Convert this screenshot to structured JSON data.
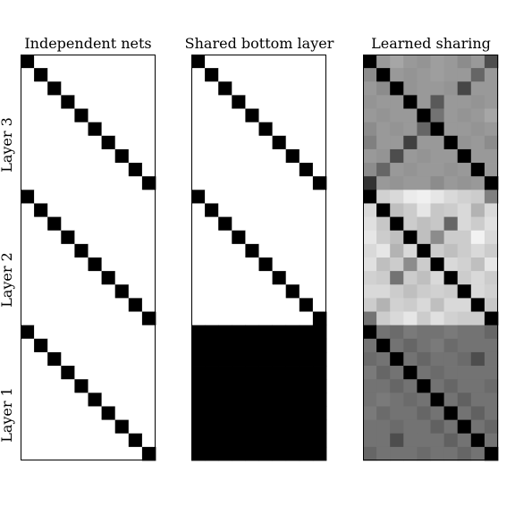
{
  "chart_data": {
    "type": "heatmap",
    "panel_titles": [
      "Independent nets",
      "Shared bottom layer",
      "Learned sharing"
    ],
    "row_labels": [
      "Layer 3",
      "Layer 2",
      "Layer 1"
    ],
    "grid": {
      "rows": 30,
      "cols": 10,
      "block_rows": 10
    },
    "colormap": "gray, 0 = white, 1 = black",
    "matrices": {
      "independent": {
        "description": "identity pattern repeated in each layer block",
        "diagonal": 1,
        "off_diagonal": 0
      },
      "shared_bottom": {
        "layer_3": {
          "diagonal": 1,
          "off_diagonal": 0
        },
        "layer_2": {
          "diagonal": 1,
          "off_diagonal": 0
        },
        "layer_1": {
          "all": 1
        }
      },
      "learned": {
        "layer_3": [
          [
            1.0,
            0.4,
            0.35,
            0.4,
            0.42,
            0.38,
            0.4,
            0.45,
            0.4,
            0.7
          ],
          [
            0.45,
            1.0,
            0.4,
            0.42,
            0.4,
            0.38,
            0.4,
            0.4,
            0.6,
            0.4
          ],
          [
            0.4,
            0.45,
            1.0,
            0.42,
            0.4,
            0.4,
            0.42,
            0.72,
            0.4,
            0.4
          ],
          [
            0.42,
            0.4,
            0.4,
            1.0,
            0.4,
            0.65,
            0.4,
            0.4,
            0.42,
            0.4
          ],
          [
            0.4,
            0.42,
            0.4,
            0.4,
            1.0,
            0.55,
            0.4,
            0.42,
            0.4,
            0.35
          ],
          [
            0.45,
            0.4,
            0.42,
            0.4,
            0.6,
            1.0,
            0.4,
            0.4,
            0.42,
            0.4
          ],
          [
            0.5,
            0.4,
            0.4,
            0.75,
            0.4,
            0.4,
            1.0,
            0.42,
            0.4,
            0.45
          ],
          [
            0.4,
            0.42,
            0.7,
            0.4,
            0.42,
            0.4,
            0.4,
            1.0,
            0.4,
            0.4
          ],
          [
            0.45,
            0.6,
            0.4,
            0.42,
            0.4,
            0.4,
            0.42,
            0.4,
            1.0,
            0.4
          ],
          [
            0.8,
            0.4,
            0.42,
            0.4,
            0.4,
            0.45,
            0.4,
            0.42,
            0.4,
            1.0
          ]
        ],
        "layer_2": [
          [
            1.0,
            0.18,
            0.15,
            0.08,
            0.06,
            0.1,
            0.15,
            0.18,
            0.2,
            0.5
          ],
          [
            0.15,
            1.0,
            0.25,
            0.2,
            0.1,
            0.22,
            0.2,
            0.15,
            0.3,
            0.15
          ],
          [
            0.12,
            0.22,
            1.0,
            0.2,
            0.25,
            0.22,
            0.6,
            0.15,
            0.2,
            0.12
          ],
          [
            0.1,
            0.2,
            0.25,
            1.0,
            0.25,
            0.45,
            0.2,
            0.2,
            0.05,
            0.15
          ],
          [
            0.15,
            0.1,
            0.3,
            0.15,
            1.0,
            0.2,
            0.25,
            0.2,
            0.15,
            0.2
          ],
          [
            0.12,
            0.25,
            0.2,
            0.45,
            0.2,
            1.0,
            0.15,
            0.18,
            0.25,
            0.1
          ],
          [
            0.18,
            0.2,
            0.55,
            0.2,
            0.25,
            0.15,
            1.0,
            0.2,
            0.15,
            0.2
          ],
          [
            0.15,
            0.15,
            0.2,
            0.25,
            0.2,
            0.18,
            0.2,
            1.0,
            0.15,
            0.18
          ],
          [
            0.2,
            0.3,
            0.18,
            0.2,
            0.15,
            0.25,
            0.15,
            0.15,
            1.0,
            0.22
          ],
          [
            0.55,
            0.2,
            0.15,
            0.1,
            0.2,
            0.12,
            0.18,
            0.2,
            0.2,
            1.0
          ]
        ],
        "layer_1": [
          [
            1.0,
            0.55,
            0.58,
            0.52,
            0.55,
            0.55,
            0.52,
            0.55,
            0.55,
            0.6
          ],
          [
            0.55,
            1.0,
            0.55,
            0.6,
            0.55,
            0.52,
            0.58,
            0.55,
            0.55,
            0.55
          ],
          [
            0.58,
            0.55,
            1.0,
            0.55,
            0.6,
            0.55,
            0.55,
            0.58,
            0.7,
            0.55
          ],
          [
            0.52,
            0.6,
            0.55,
            1.0,
            0.55,
            0.58,
            0.55,
            0.55,
            0.55,
            0.55
          ],
          [
            0.55,
            0.55,
            0.6,
            0.55,
            1.0,
            0.55,
            0.6,
            0.55,
            0.55,
            0.58
          ],
          [
            0.55,
            0.52,
            0.55,
            0.58,
            0.55,
            1.0,
            0.55,
            0.62,
            0.55,
            0.55
          ],
          [
            0.52,
            0.58,
            0.55,
            0.55,
            0.6,
            0.55,
            1.0,
            0.55,
            0.62,
            0.55
          ],
          [
            0.55,
            0.55,
            0.58,
            0.55,
            0.55,
            0.62,
            0.55,
            1.0,
            0.55,
            0.6
          ],
          [
            0.55,
            0.55,
            0.7,
            0.55,
            0.55,
            0.55,
            0.62,
            0.55,
            1.0,
            0.55
          ],
          [
            0.6,
            0.55,
            0.55,
            0.55,
            0.58,
            0.55,
            0.55,
            0.6,
            0.55,
            1.0
          ]
        ]
      }
    }
  }
}
